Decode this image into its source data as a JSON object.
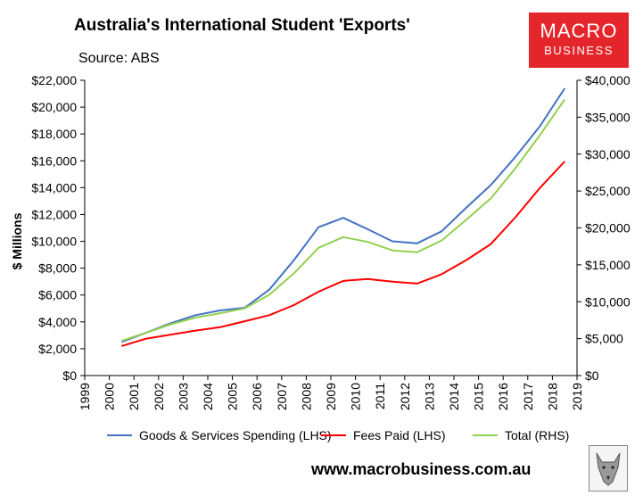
{
  "header": {
    "title": "Australia's International Student 'Exports'",
    "source": "Source: ABS"
  },
  "logo": {
    "line1": "MACRO",
    "line2": "BUSINESS",
    "bg_color": "#e4262c"
  },
  "footer": {
    "website": "www.macrobusiness.com.au",
    "icon": "wolf-icon"
  },
  "chart_data": {
    "type": "line",
    "title": "Australia's International Student 'Exports'",
    "ylabel": "$ Millions",
    "x_ticks": [
      "1999",
      "2000",
      "2001",
      "2002",
      "2003",
      "2004",
      "2005",
      "2006",
      "2007",
      "2008",
      "2009",
      "2010",
      "2011",
      "2012",
      "2013",
      "2014",
      "2015",
      "2016",
      "2017",
      "2018",
      "2019"
    ],
    "xlim": [
      1999,
      2019
    ],
    "ylim_left": [
      0,
      22000
    ],
    "ylim_right": [
      0,
      40000
    ],
    "y_ticks_left": [
      "$0",
      "$2,000",
      "$4,000",
      "$6,000",
      "$8,000",
      "$10,000",
      "$12,000",
      "$14,000",
      "$16,000",
      "$18,000",
      "$20,000",
      "$22,000"
    ],
    "y_ticks_right": [
      "$0",
      "$5,000",
      "$10,000",
      "$15,000",
      "$20,000",
      "$25,000",
      "$30,000",
      "$35,000",
      "$40,000"
    ],
    "grid": false,
    "legend_position": "bottom",
    "series": [
      {
        "name": "Goods & Services Spending (LHS)",
        "axis": "left",
        "color": "#4472c4",
        "points": [
          [
            2000.5,
            2500
          ],
          [
            2001.5,
            3200
          ],
          [
            2002.5,
            3900
          ],
          [
            2003.5,
            4500
          ],
          [
            2004.5,
            4850
          ],
          [
            2005.5,
            5050
          ],
          [
            2006.5,
            6400
          ],
          [
            2007.5,
            8600
          ],
          [
            2008.5,
            11050
          ],
          [
            2009.5,
            11750
          ],
          [
            2010.5,
            10900
          ],
          [
            2011.5,
            10000
          ],
          [
            2012.5,
            9850
          ],
          [
            2013.5,
            10750
          ],
          [
            2014.5,
            12500
          ],
          [
            2015.5,
            14200
          ],
          [
            2016.5,
            16300
          ],
          [
            2017.5,
            18600
          ],
          [
            2018.5,
            21400
          ]
        ]
      },
      {
        "name": "Fees Paid (LHS)",
        "axis": "left",
        "color": "#ff0000",
        "points": [
          [
            2000.5,
            2200
          ],
          [
            2001.5,
            2750
          ],
          [
            2002.5,
            3050
          ],
          [
            2003.5,
            3350
          ],
          [
            2004.5,
            3600
          ],
          [
            2005.5,
            4050
          ],
          [
            2006.5,
            4500
          ],
          [
            2007.5,
            5250
          ],
          [
            2008.5,
            6250
          ],
          [
            2009.5,
            7050
          ],
          [
            2010.5,
            7200
          ],
          [
            2011.5,
            7000
          ],
          [
            2012.5,
            6850
          ],
          [
            2013.5,
            7550
          ],
          [
            2014.5,
            8600
          ],
          [
            2015.5,
            9800
          ],
          [
            2016.5,
            11800
          ],
          [
            2017.5,
            14000
          ],
          [
            2018.5,
            15950
          ]
        ]
      },
      {
        "name": "Total (RHS)",
        "axis": "right",
        "color": "#92d050",
        "points": [
          [
            2000.5,
            4700
          ],
          [
            2001.5,
            5800
          ],
          [
            2002.5,
            6950
          ],
          [
            2003.5,
            7850
          ],
          [
            2004.5,
            8450
          ],
          [
            2005.5,
            9100
          ],
          [
            2006.5,
            10950
          ],
          [
            2007.5,
            13850
          ],
          [
            2008.5,
            17300
          ],
          [
            2009.5,
            18750
          ],
          [
            2010.5,
            18100
          ],
          [
            2011.5,
            16950
          ],
          [
            2012.5,
            16700
          ],
          [
            2013.5,
            18300
          ],
          [
            2014.5,
            21100
          ],
          [
            2015.5,
            24000
          ],
          [
            2016.5,
            28100
          ],
          [
            2017.5,
            32600
          ],
          [
            2018.5,
            37400
          ]
        ]
      }
    ]
  }
}
